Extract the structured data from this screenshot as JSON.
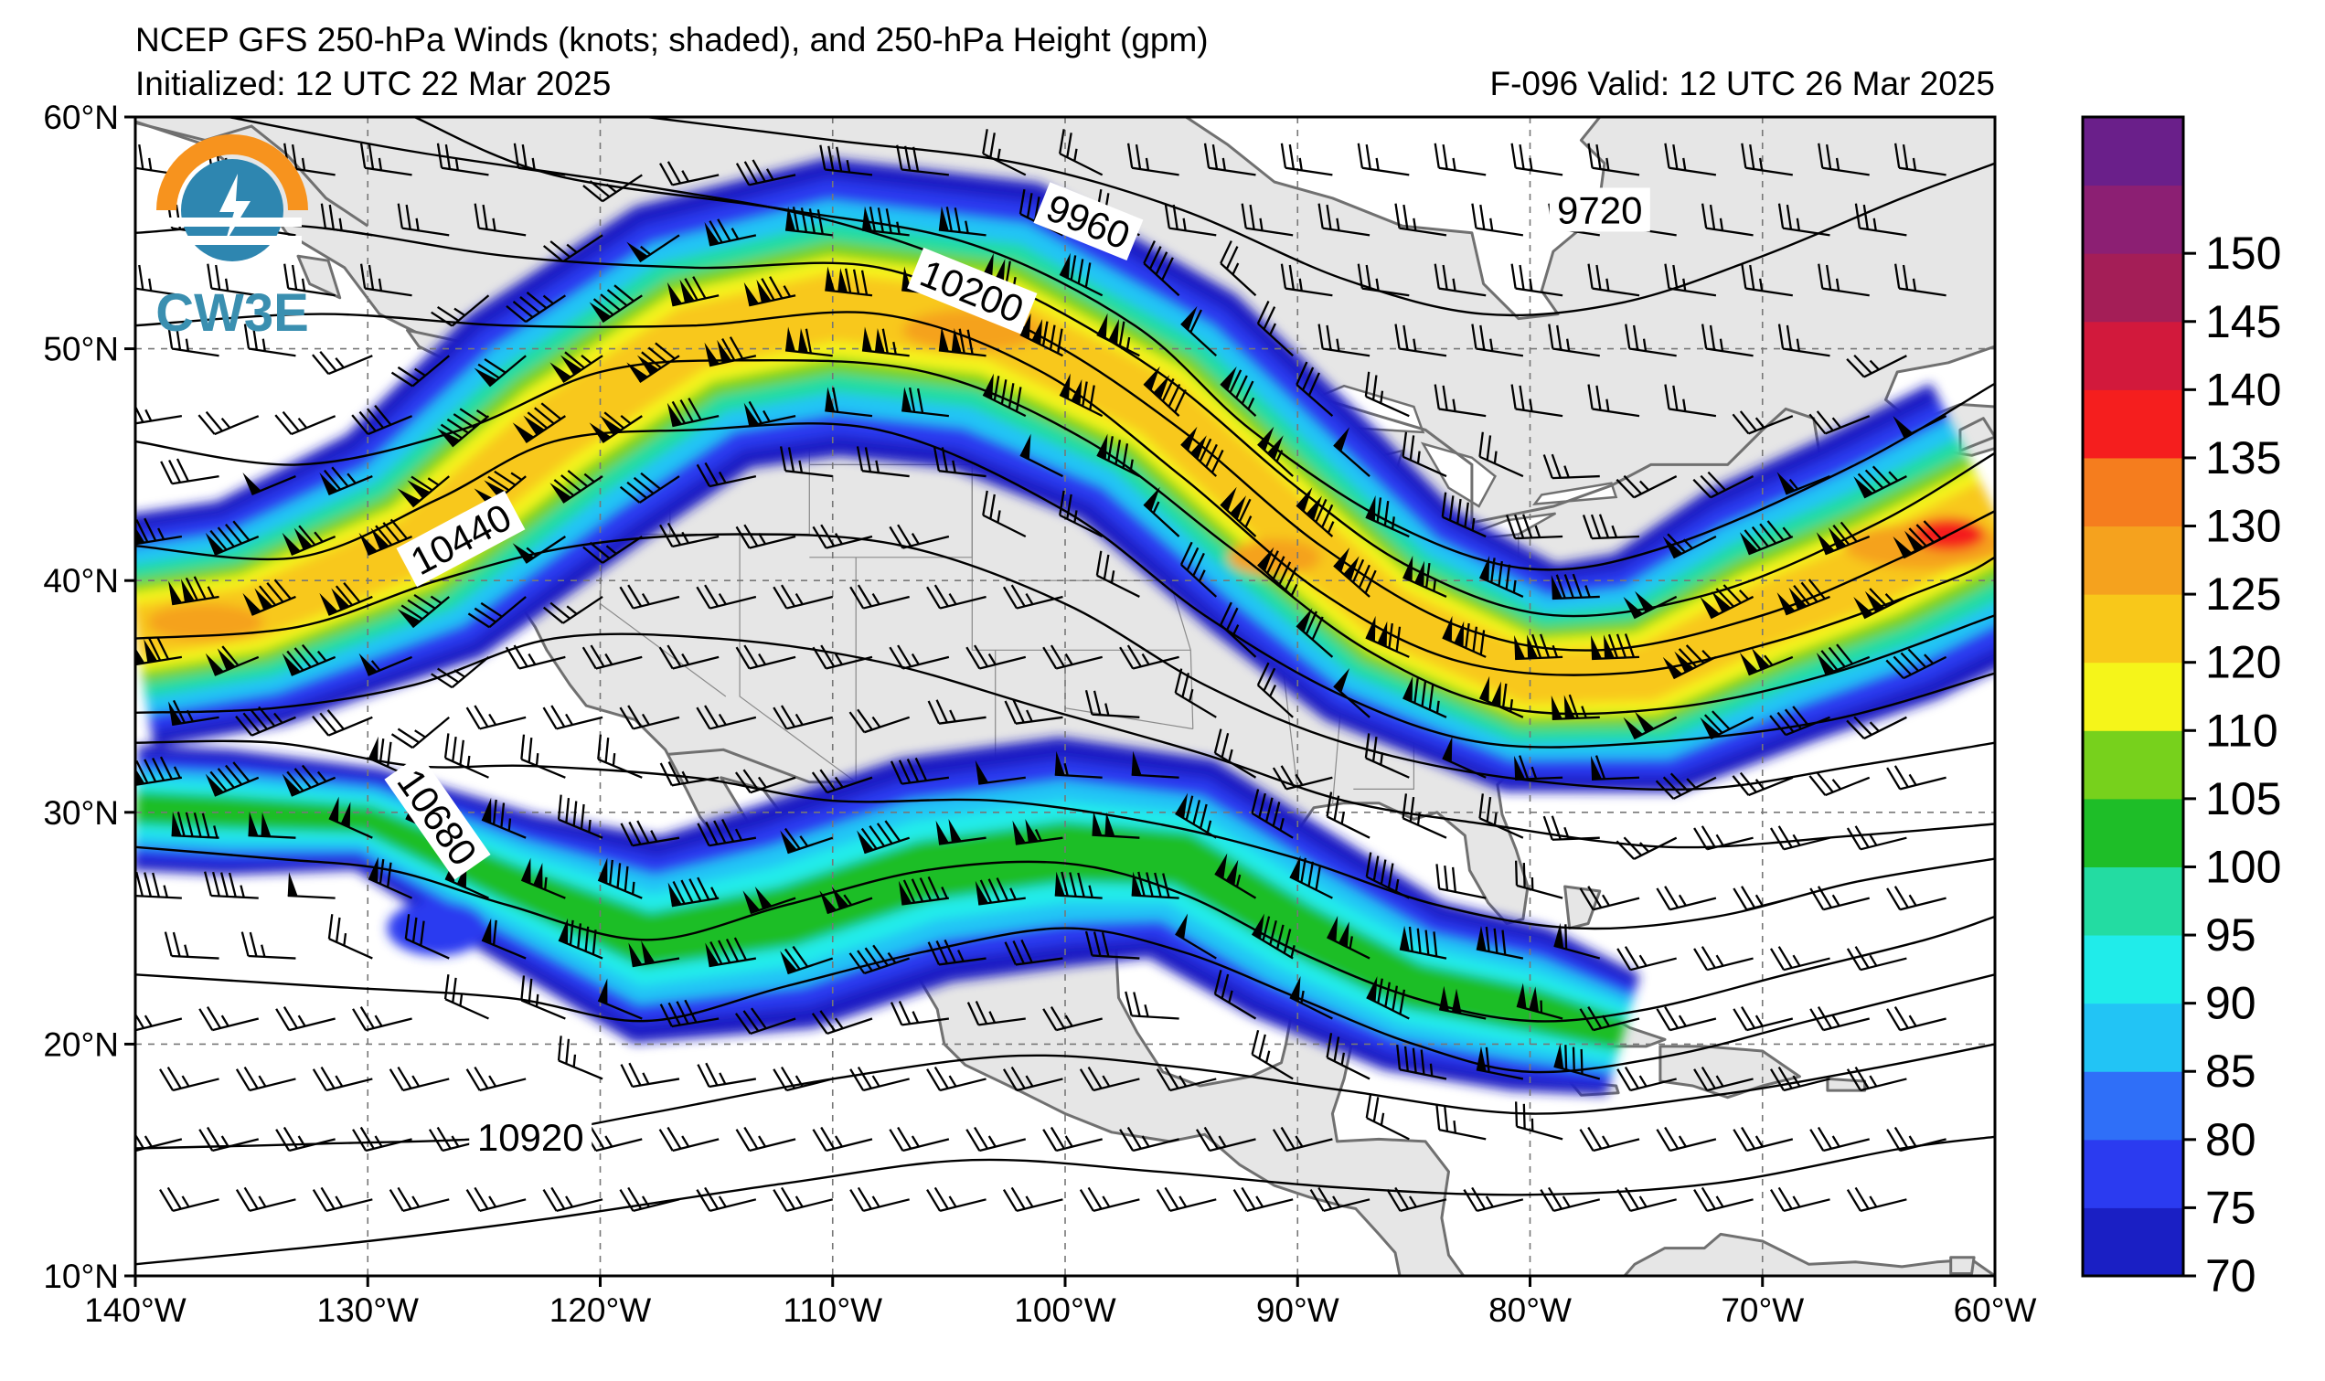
{
  "header": {
    "title": "NCEP GFS 250-hPa Winds (knots; shaded), and 250-hPa Height (gpm)",
    "initialized": "Initialized: 12 UTC 22 Mar 2025",
    "valid": "F-096  Valid: 12 UTC 26 Mar 2025"
  },
  "logo": {
    "text": "CW3E"
  },
  "map": {
    "lon_range": [
      -140,
      -60
    ],
    "lat_range": [
      10,
      60
    ],
    "lat_ticks": [
      "10°N",
      "20°N",
      "30°N",
      "40°N",
      "50°N",
      "60°N"
    ],
    "lon_ticks": [
      "140°W",
      "130°W",
      "120°W",
      "110°W",
      "100°W",
      "90°W",
      "80°W",
      "70°W",
      "60°W"
    ],
    "grid": "dashed",
    "land_color": "#e6e6e6",
    "ocean_color": "#ffffff",
    "coast_color": "#707070"
  },
  "height_labels": [
    {
      "text": "9720",
      "lon": -77,
      "lat": 56.0
    },
    {
      "text": "9960",
      "lon": -99,
      "lat": 55.5
    },
    {
      "text": "10200",
      "lon": -104,
      "lat": 52.5
    },
    {
      "text": "10440",
      "lon": -126,
      "lat": 41.8
    },
    {
      "text": "10680",
      "lon": -127,
      "lat": 29.8
    },
    {
      "text": "10920",
      "lon": -123,
      "lat": 16.0
    }
  ],
  "colorbar": {
    "levels": [
      70,
      75,
      80,
      85,
      90,
      95,
      100,
      105,
      110,
      120,
      125,
      130,
      135,
      140,
      145,
      150,
      155
    ],
    "labels": [
      "70",
      "75",
      "80",
      "85",
      "90",
      "95",
      "100",
      "105",
      "110",
      "120",
      "125",
      "130",
      "135",
      "140",
      "145",
      "150"
    ],
    "colors": [
      "#1a1fc4",
      "#2b3bf0",
      "#2f6ff8",
      "#22c4f5",
      "#20ecea",
      "#23dca2",
      "#1ebe28",
      "#77d11c",
      "#f5f51a",
      "#f8c81a",
      "#f5a21e",
      "#f57d1e",
      "#f51e1e",
      "#d2193c",
      "#a41e57",
      "#8c1f73",
      "#6a1f8a"
    ]
  }
}
